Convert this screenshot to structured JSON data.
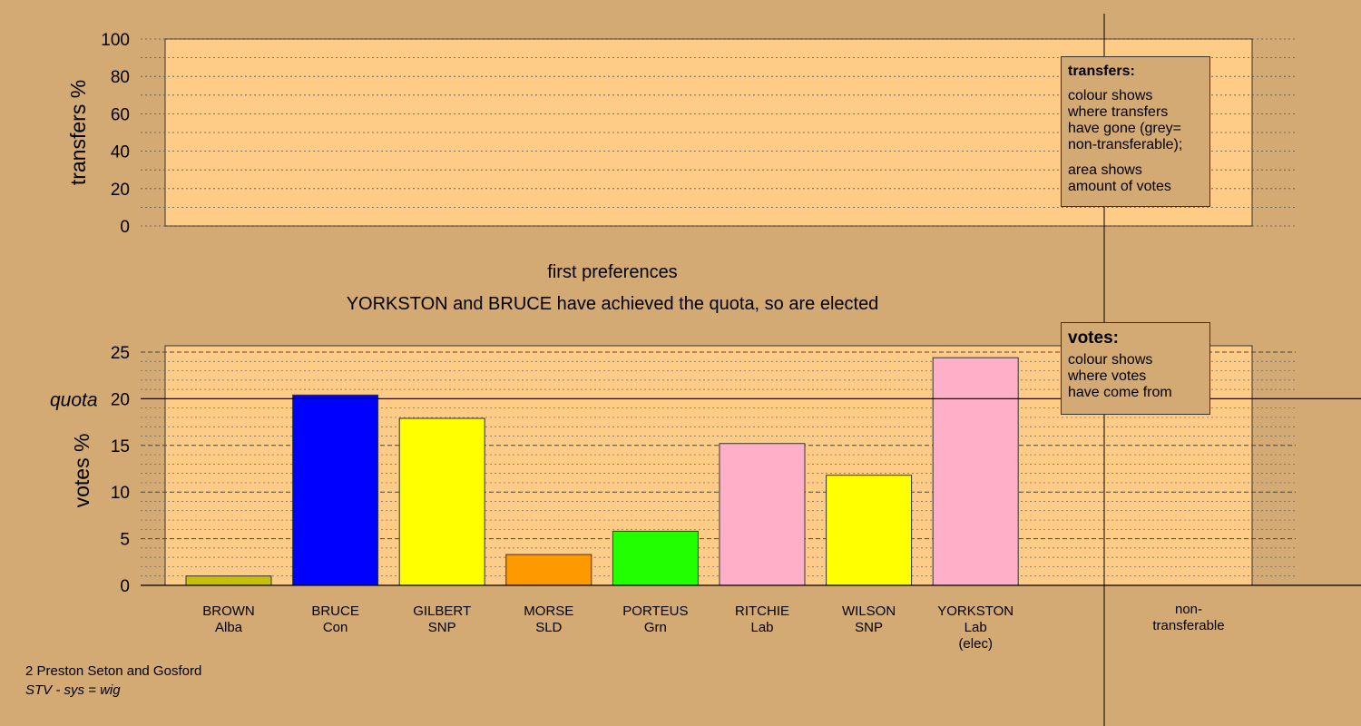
{
  "chart_data": [
    {
      "type": "bar",
      "panel": "transfers",
      "ylabel": "transfers %",
      "ylim": [
        0,
        100
      ],
      "yticks": [
        0,
        20,
        40,
        60,
        80,
        100
      ],
      "grid": true,
      "categories": [],
      "values": []
    },
    {
      "type": "bar",
      "panel": "votes",
      "title": "first preferences",
      "subtitle": "YORKSTON and BRUCE have achieved the quota, so are elected",
      "ylabel": "votes %",
      "ylim": [
        0,
        25
      ],
      "yticks": [
        0,
        5,
        10,
        15,
        20,
        25
      ],
      "quota": 20,
      "quota_label": "quota",
      "grid": true,
      "categories": [
        [
          "BROWN",
          "Alba"
        ],
        [
          "BRUCE",
          "Con"
        ],
        [
          "GILBERT",
          "SNP"
        ],
        [
          "MORSE",
          "SLD"
        ],
        [
          "PORTEUS",
          "Grn"
        ],
        [
          "RITCHIE",
          "Lab"
        ],
        [
          "WILSON",
          "SNP"
        ],
        [
          "YORKSTON",
          "Lab",
          "(elec)"
        ]
      ],
      "values": [
        1.0,
        20.4,
        17.9,
        3.3,
        5.8,
        15.2,
        11.8,
        24.4
      ],
      "colors": [
        "#c6c00a",
        "#0000ff",
        "#ffff00",
        "#ff9900",
        "#22ff00",
        "#ffb0c8",
        "#ffff00",
        "#ffb0c8"
      ],
      "nontransferable_label": [
        "non-",
        "transferable"
      ]
    }
  ],
  "notes": {
    "transfers": {
      "title": "transfers:",
      "lines1": [
        "colour shows",
        "where transfers",
        "have gone (grey=",
        "non-transferable);"
      ],
      "lines2": [
        "area shows",
        "amount of votes"
      ]
    },
    "votes": {
      "title": "votes:",
      "lines": [
        "colour shows",
        "where votes",
        "have come from"
      ]
    }
  },
  "footer": {
    "area": "2 Preston Seton and Gosford",
    "system": "STV - sys = wig"
  },
  "colors": {
    "background": "#d3a974",
    "plot_bg": "#ffcc88"
  }
}
